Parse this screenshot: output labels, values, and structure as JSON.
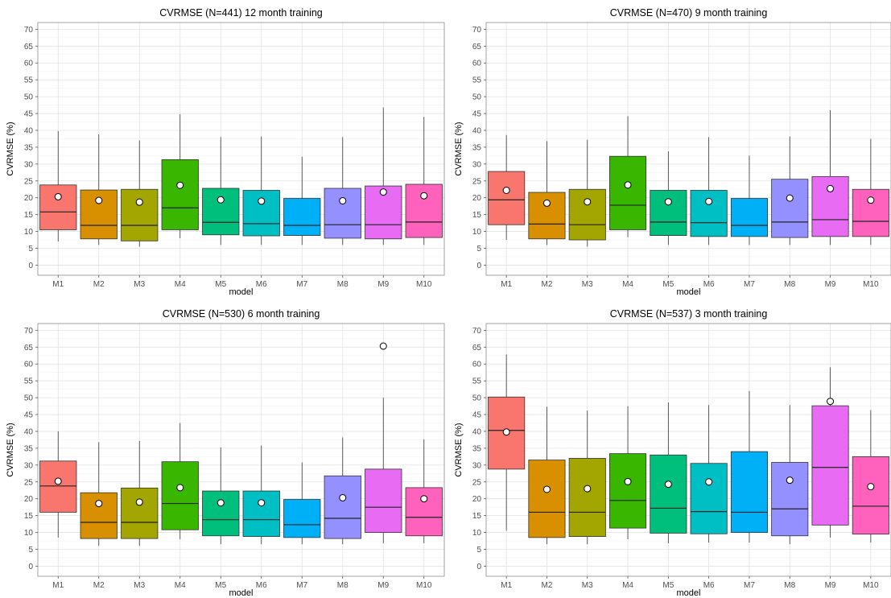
{
  "chart_data": [
    {
      "type": "box",
      "title": "CVRMSE (N=441) 12 month training",
      "xlabel": "model",
      "ylabel": "CVRMSE (%)",
      "ylim": [
        -3,
        72
      ],
      "yticks": [
        0,
        5,
        10,
        15,
        20,
        25,
        30,
        35,
        40,
        45,
        50,
        55,
        60,
        65,
        70
      ],
      "grid": true,
      "categories": [
        "M1",
        "M2",
        "M3",
        "M4",
        "M5",
        "M6",
        "M7",
        "M8",
        "M9",
        "M10"
      ],
      "colors": [
        "#F8766D",
        "#D89000",
        "#A3A500",
        "#39B600",
        "#00BF7D",
        "#00BFC4",
        "#00B0F6",
        "#9590FF",
        "#E76BF3",
        "#FF62BC"
      ],
      "boxes": [
        {
          "whisker_low": 7,
          "q1": 10.5,
          "median": 15.8,
          "q3": 23.8,
          "whisker_high": 39.8,
          "mean": 20.3
        },
        {
          "whisker_low": 6,
          "q1": 7.8,
          "median": 11.8,
          "q3": 22.3,
          "whisker_high": 38.8,
          "mean": 19.2
        },
        {
          "whisker_low": 5.5,
          "q1": 7.2,
          "median": 11.8,
          "q3": 22.5,
          "whisker_high": 37,
          "mean": 18.7
        },
        {
          "whisker_low": 8,
          "q1": 10.5,
          "median": 17,
          "q3": 31.3,
          "whisker_high": 44.8,
          "mean": 23.7
        },
        {
          "whisker_low": 6,
          "q1": 9,
          "median": 12.7,
          "q3": 22.8,
          "whisker_high": 38,
          "mean": 19.4
        },
        {
          "whisker_low": 6,
          "q1": 8.7,
          "median": 12.3,
          "q3": 22.2,
          "whisker_high": 38.2,
          "mean": 19
        },
        {
          "whisker_low": 6,
          "q1": 8.8,
          "median": 11.8,
          "q3": 19.8,
          "whisker_high": 32.2,
          "mean": null
        },
        {
          "whisker_low": 6,
          "q1": 8,
          "median": 12,
          "q3": 22.8,
          "whisker_high": 38,
          "mean": 19.1
        },
        {
          "whisker_low": 6,
          "q1": 7.8,
          "median": 12,
          "q3": 23.5,
          "whisker_high": 46.8,
          "mean": 21.7
        },
        {
          "whisker_low": 6,
          "q1": 8.2,
          "median": 12.8,
          "q3": 24,
          "whisker_high": 44,
          "mean": 20.6
        }
      ]
    },
    {
      "type": "box",
      "title": "CVRMSE (N=470) 9 month training",
      "xlabel": "model",
      "ylabel": "CVRMSE (%)",
      "ylim": [
        -3,
        72
      ],
      "yticks": [
        0,
        5,
        10,
        15,
        20,
        25,
        30,
        35,
        40,
        45,
        50,
        55,
        60,
        65,
        70
      ],
      "grid": true,
      "categories": [
        "M1",
        "M2",
        "M3",
        "M4",
        "M5",
        "M6",
        "M7",
        "M8",
        "M9",
        "M10"
      ],
      "colors": [
        "#F8766D",
        "#D89000",
        "#A3A500",
        "#39B600",
        "#00BF7D",
        "#00BFC4",
        "#00B0F6",
        "#9590FF",
        "#E76BF3",
        "#FF62BC"
      ],
      "boxes": [
        {
          "whisker_low": 7.5,
          "q1": 12,
          "median": 19.4,
          "q3": 27.8,
          "whisker_high": 38.6,
          "mean": 22.2
        },
        {
          "whisker_low": 6,
          "q1": 7.8,
          "median": 12.2,
          "q3": 21.6,
          "whisker_high": 36.8,
          "mean": 18.4
        },
        {
          "whisker_low": 5.5,
          "q1": 7.5,
          "median": 12,
          "q3": 22.5,
          "whisker_high": 37.2,
          "mean": 18.8
        },
        {
          "whisker_low": 8.3,
          "q1": 10.5,
          "median": 17.8,
          "q3": 32.3,
          "whisker_high": 44.2,
          "mean": 23.8
        },
        {
          "whisker_low": 6,
          "q1": 8.8,
          "median": 12.8,
          "q3": 22.2,
          "whisker_high": 33.8,
          "mean": 18.8
        },
        {
          "whisker_low": 6,
          "q1": 8.5,
          "median": 12.6,
          "q3": 22.2,
          "whisker_high": 38,
          "mean": 18.9
        },
        {
          "whisker_low": 6,
          "q1": 8.5,
          "median": 11.8,
          "q3": 19.8,
          "whisker_high": 32.5,
          "mean": null
        },
        {
          "whisker_low": 6,
          "q1": 8.2,
          "median": 12.8,
          "q3": 25.5,
          "whisker_high": 38.2,
          "mean": 19.9
        },
        {
          "whisker_low": 6,
          "q1": 8.5,
          "median": 13.5,
          "q3": 26.3,
          "whisker_high": 46,
          "mean": 22.7
        },
        {
          "whisker_low": 6,
          "q1": 8.5,
          "median": 13,
          "q3": 22.5,
          "whisker_high": 37.5,
          "mean": 19.3
        }
      ]
    },
    {
      "type": "box",
      "title": "CVRMSE (N=530) 6 month training",
      "xlabel": "model",
      "ylabel": "CVRMSE (%)",
      "ylim": [
        -3,
        72
      ],
      "yticks": [
        0,
        5,
        10,
        15,
        20,
        25,
        30,
        35,
        40,
        45,
        50,
        55,
        60,
        65,
        70
      ],
      "grid": true,
      "categories": [
        "M1",
        "M2",
        "M3",
        "M4",
        "M5",
        "M6",
        "M7",
        "M8",
        "M9",
        "M10"
      ],
      "colors": [
        "#F8766D",
        "#D89000",
        "#A3A500",
        "#39B600",
        "#00BF7D",
        "#00BFC4",
        "#00B0F6",
        "#9590FF",
        "#E76BF3",
        "#FF62BC"
      ],
      "boxes": [
        {
          "whisker_low": 8.5,
          "q1": 16,
          "median": 23.8,
          "q3": 31.2,
          "whisker_high": 40,
          "mean": 25.2
        },
        {
          "whisker_low": 6,
          "q1": 8.2,
          "median": 13,
          "q3": 21.8,
          "whisker_high": 36.8,
          "mean": 18.6
        },
        {
          "whisker_low": 6,
          "q1": 8.2,
          "median": 13,
          "q3": 23.2,
          "whisker_high": 37.2,
          "mean": 19
        },
        {
          "whisker_low": 8,
          "q1": 10.8,
          "median": 18.6,
          "q3": 31,
          "whisker_high": 42.5,
          "mean": 23.3
        },
        {
          "whisker_low": 6.5,
          "q1": 9,
          "median": 13.8,
          "q3": 22.3,
          "whisker_high": 35.2,
          "mean": 18.8
        },
        {
          "whisker_low": 6.5,
          "q1": 8.8,
          "median": 13.8,
          "q3": 22.3,
          "whisker_high": 35.8,
          "mean": 18.8
        },
        {
          "whisker_low": 6.5,
          "q1": 8.5,
          "median": 12.3,
          "q3": 19.8,
          "whisker_high": 30.8,
          "mean": null
        },
        {
          "whisker_low": 6.5,
          "q1": 8.2,
          "median": 14.2,
          "q3": 26.8,
          "whisker_high": 38.2,
          "mean": 20.3
        },
        {
          "whisker_low": 6.8,
          "q1": 10,
          "median": 17.5,
          "q3": 28.8,
          "whisker_high": 50,
          "mean": 65.3
        },
        {
          "whisker_low": 6.8,
          "q1": 9,
          "median": 14.5,
          "q3": 23.3,
          "whisker_high": 37.6,
          "mean": 20
        }
      ]
    },
    {
      "type": "box",
      "title": "CVRMSE (N=537) 3 month training",
      "xlabel": "model",
      "ylabel": "CVRMSE (%)",
      "ylim": [
        -3,
        72
      ],
      "yticks": [
        0,
        5,
        10,
        15,
        20,
        25,
        30,
        35,
        40,
        45,
        50,
        55,
        60,
        65,
        70
      ],
      "grid": true,
      "categories": [
        "M1",
        "M2",
        "M3",
        "M4",
        "M5",
        "M6",
        "M7",
        "M8",
        "M9",
        "M10"
      ],
      "colors": [
        "#F8766D",
        "#D89000",
        "#A3A500",
        "#39B600",
        "#00BF7D",
        "#00BFC4",
        "#00B0F6",
        "#9590FF",
        "#E76BF3",
        "#FF62BC"
      ],
      "boxes": [
        {
          "whisker_low": 10.5,
          "q1": 28.8,
          "median": 40.3,
          "q3": 50.2,
          "whisker_high": 62.8,
          "mean": 39.8
        },
        {
          "whisker_low": 6.5,
          "q1": 8.5,
          "median": 16,
          "q3": 31.5,
          "whisker_high": 47.3,
          "mean": 22.8
        },
        {
          "whisker_low": 6.5,
          "q1": 8.8,
          "median": 16,
          "q3": 32,
          "whisker_high": 46.2,
          "mean": 23
        },
        {
          "whisker_low": 8,
          "q1": 11.3,
          "median": 19.5,
          "q3": 33.4,
          "whisker_high": 47.5,
          "mean": 25.1
        },
        {
          "whisker_low": 6.8,
          "q1": 9.8,
          "median": 17.2,
          "q3": 33,
          "whisker_high": 48.6,
          "mean": 24.3
        },
        {
          "whisker_low": 7,
          "q1": 9.6,
          "median": 16.2,
          "q3": 30.5,
          "whisker_high": 47.8,
          "mean": 25
        },
        {
          "whisker_low": 7,
          "q1": 10,
          "median": 16,
          "q3": 34,
          "whisker_high": 52,
          "mean": null
        },
        {
          "whisker_low": 6.5,
          "q1": 9,
          "median": 17,
          "q3": 30.8,
          "whisker_high": 47.8,
          "mean": 25.5
        },
        {
          "whisker_low": 8.5,
          "q1": 12.2,
          "median": 29.3,
          "q3": 47.6,
          "whisker_high": 59,
          "mean": 48.9
        },
        {
          "whisker_low": 7,
          "q1": 9.5,
          "median": 17.8,
          "q3": 32.5,
          "whisker_high": 46.3,
          "mean": 23.6
        }
      ]
    }
  ]
}
